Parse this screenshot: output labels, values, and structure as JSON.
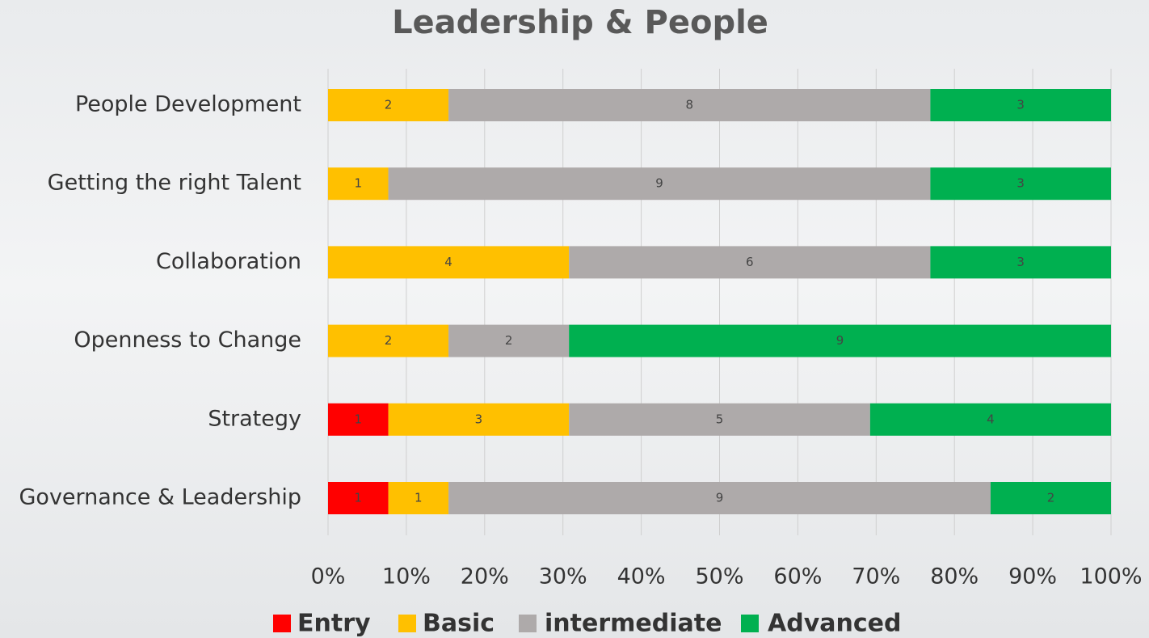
{
  "chart_data": {
    "type": "bar100h",
    "title": "Leadership & People",
    "categories": [
      "People Development",
      "Getting the right Talent",
      "Collaboration",
      "Openness to Change",
      "Strategy",
      "Governance & Leadership"
    ],
    "series": [
      {
        "name": "Entry",
        "color": "#ff0000",
        "values": [
          null,
          null,
          null,
          null,
          1,
          1
        ]
      },
      {
        "name": "Basic",
        "color": "#ffc000",
        "values": [
          2,
          1,
          4,
          2,
          3,
          1
        ]
      },
      {
        "name": "intermediate",
        "color": "#aeaaaa",
        "values": [
          8,
          9,
          6,
          2,
          5,
          9
        ]
      },
      {
        "name": "Advanced",
        "color": "#00b050",
        "values": [
          3,
          3,
          3,
          9,
          4,
          2
        ]
      }
    ],
    "xlim": [
      0,
      100
    ],
    "xticks": [
      {
        "value": 0,
        "label": "0%"
      },
      {
        "value": 10,
        "label": "10%"
      },
      {
        "value": 20,
        "label": "20%"
      },
      {
        "value": 30,
        "label": "30%"
      },
      {
        "value": 40,
        "label": "40%"
      },
      {
        "value": 50,
        "label": "50%"
      },
      {
        "value": 60,
        "label": "60%"
      },
      {
        "value": 70,
        "label": "70%"
      },
      {
        "value": 80,
        "label": "80%"
      },
      {
        "value": 90,
        "label": "90%"
      },
      {
        "value": 100,
        "label": "100%"
      }
    ],
    "grid": true
  }
}
